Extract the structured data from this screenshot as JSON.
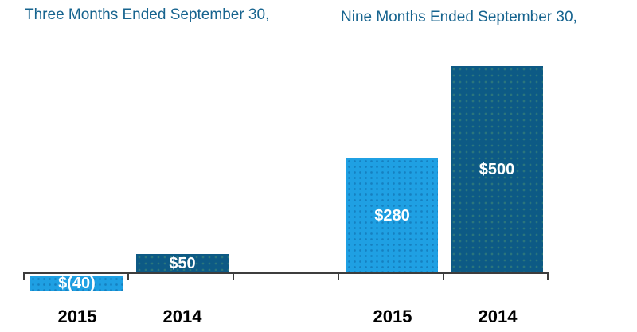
{
  "chart_data": {
    "type": "bar",
    "groups": [
      {
        "title": "Three Months Ended September 30,",
        "categories": [
          "2015",
          "2014"
        ],
        "values": [
          -40,
          50
        ],
        "value_labels": [
          "$(40)",
          "$50"
        ]
      },
      {
        "title": "Nine Months Ended September 30,",
        "categories": [
          "2015",
          "2014"
        ],
        "values": [
          280,
          500
        ],
        "value_labels": [
          "$280",
          "$500"
        ]
      }
    ],
    "ylim": [
      -40,
      500
    ],
    "baseline": 0,
    "grid": false,
    "legend": "none",
    "layout_hints": {
      "value_labels_inside_bars": true,
      "negative_bar_drawn_below_axis": true
    },
    "colors": {
      "series_2015_bar": "#1FA0E3",
      "series_2014_bar": "#0D5A85",
      "title_text": "#17648F",
      "axis_line": "#3d3d3d",
      "value_label_text": "#FFFFFF",
      "category_label_text": "#000000",
      "background": "#FFFFFF"
    }
  }
}
